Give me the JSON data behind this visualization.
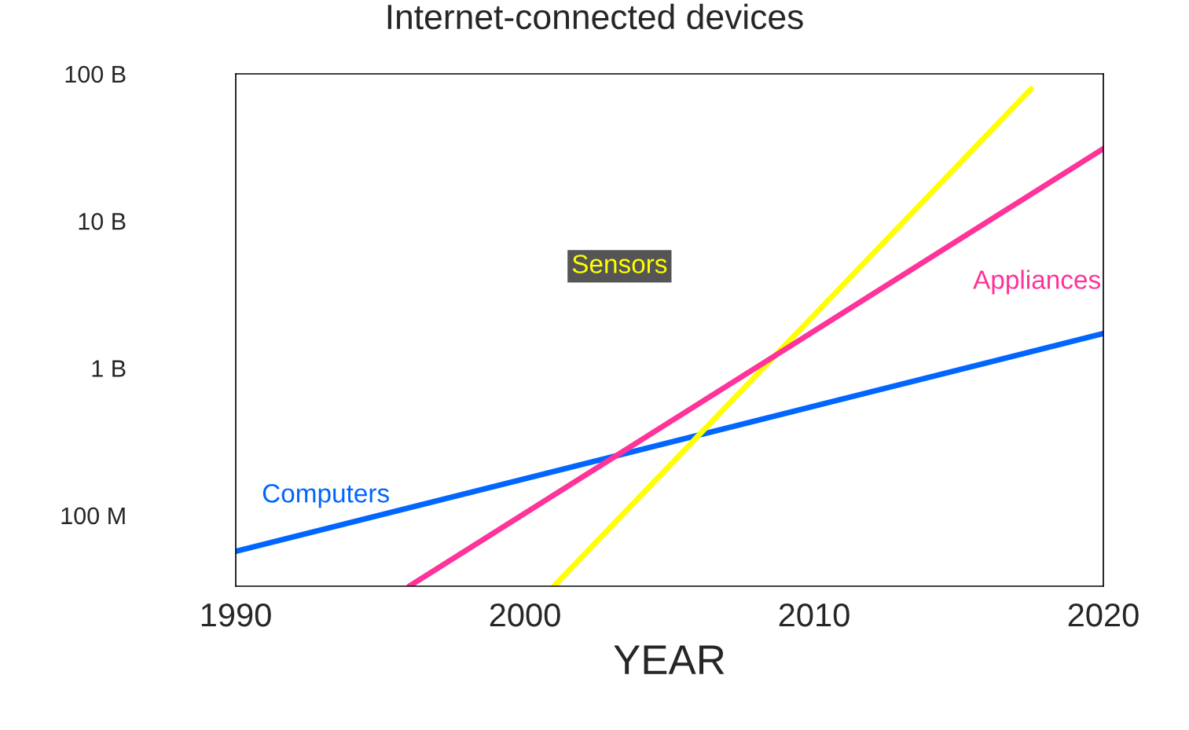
{
  "chart_data": {
    "type": "line",
    "title": "Internet-connected devices",
    "xlabel": "YEAR",
    "log": "y",
    "xlim": [
      1990,
      2020
    ],
    "xticks": [
      1990,
      2000,
      2010,
      2020
    ],
    "ylim": [
      33000000,
      100000000000
    ],
    "yticks": [
      {
        "value": 100000000,
        "label": "100 M"
      },
      {
        "value": 1000000000,
        "label": "1 B"
      },
      {
        "value": 10000000000,
        "label": "10 B"
      },
      {
        "value": 100000000000,
        "label": "100 B"
      }
    ],
    "grid": false,
    "marker": "none",
    "line_style": "solid",
    "series": [
      {
        "name": "Computers",
        "color": "#0066ff",
        "x": [
          1990,
          2020
        ],
        "values": [
          57000000,
          1720000000
        ]
      },
      {
        "name": "Sensors",
        "color": "#ffff00",
        "x": [
          2001,
          2017.5
        ],
        "values": [
          33000000,
          79000000000
        ]
      },
      {
        "name": "Appliances",
        "color": "#ff3399",
        "x": [
          1996,
          2020
        ],
        "values": [
          33000000,
          31000000000
        ]
      }
    ]
  }
}
